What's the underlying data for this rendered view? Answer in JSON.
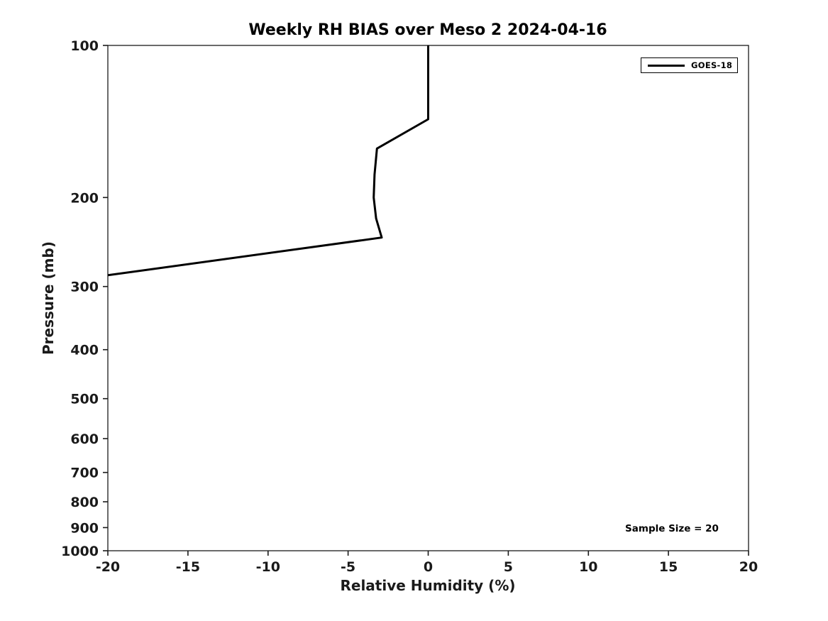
{
  "title": "Weekly RH BIAS over Meso 2 2024-04-16",
  "annotations": {
    "sample_size": "Sample Size = 20"
  },
  "colors": {
    "line": "#000000",
    "axis": "#1a1a1a",
    "background": "#ffffff",
    "text": "#000000"
  },
  "chart_data": {
    "type": "line",
    "title": "Weekly RH BIAS over Meso 2 2024-04-16",
    "xlabel": "Relative Humidity (%)",
    "ylabel": "Pressure (mb)",
    "xlim": [
      -20,
      20
    ],
    "ylim": [
      100,
      1000
    ],
    "y_scale": "log",
    "y_inverted": true,
    "grid": false,
    "xticks": [
      -20,
      -15,
      -10,
      -5,
      0,
      5,
      10,
      15,
      20
    ],
    "yticks": [
      100,
      200,
      300,
      400,
      500,
      600,
      700,
      800,
      900,
      1000
    ],
    "legend": {
      "position": "top-right",
      "entries": [
        {
          "label": "GOES-18",
          "color": "#000000"
        }
      ]
    },
    "annotation_text": "Sample Size = 20",
    "series": [
      {
        "name": "GOES-18",
        "color": "#000000",
        "line_width": 3,
        "points_note": "pairs are [rh_bias_percent, pressure_mb]; line is clipped at x=-20 near 285 mb",
        "points": [
          [
            0.0,
            100
          ],
          [
            0.0,
            140
          ],
          [
            -3.2,
            160
          ],
          [
            -3.35,
            180
          ],
          [
            -3.4,
            200
          ],
          [
            -3.25,
            220
          ],
          [
            -2.9,
            240
          ],
          [
            -20.0,
            285
          ]
        ]
      }
    ]
  }
}
